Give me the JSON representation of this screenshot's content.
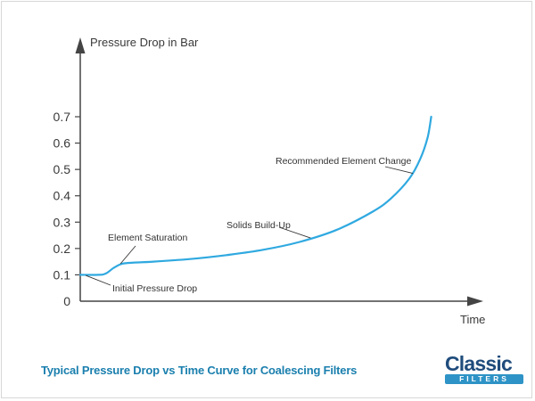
{
  "chart_data": {
    "type": "line",
    "ylabel": "Pressure Drop in Bar",
    "xlabel": "Time",
    "ylim": [
      0,
      0.7
    ],
    "yticks": [
      {
        "value": 0,
        "label": "0"
      },
      {
        "value": 0.1,
        "label": "0.1"
      },
      {
        "value": 0.2,
        "label": "0.2"
      },
      {
        "value": 0.3,
        "label": "0.3"
      },
      {
        "value": 0.4,
        "label": "0.4"
      },
      {
        "value": 0.5,
        "label": "0.5"
      },
      {
        "value": 0.6,
        "label": "0.6"
      },
      {
        "value": 0.7,
        "label": "0.7"
      }
    ],
    "series": [
      {
        "color": "#2fa9e0",
        "points": [
          [
            0.0,
            0.1
          ],
          [
            0.05,
            0.1
          ],
          [
            0.07,
            0.105
          ],
          [
            0.09,
            0.125
          ],
          [
            0.11,
            0.14
          ],
          [
            0.13,
            0.145
          ],
          [
            0.2,
            0.15
          ],
          [
            0.3,
            0.16
          ],
          [
            0.4,
            0.175
          ],
          [
            0.5,
            0.195
          ],
          [
            0.6,
            0.225
          ],
          [
            0.7,
            0.27
          ],
          [
            0.8,
            0.34
          ],
          [
            0.85,
            0.39
          ],
          [
            0.9,
            0.465
          ],
          [
            0.93,
            0.54
          ],
          [
            0.95,
            0.62
          ],
          [
            0.96,
            0.7
          ]
        ]
      }
    ],
    "annotations": [
      {
        "text": "Initial Pressure Drop",
        "target": [
          0.015,
          0.098
        ]
      },
      {
        "text": "Element Saturation",
        "target": [
          0.11,
          0.142
        ]
      },
      {
        "text": "Solids Build-Up",
        "target": [
          0.63,
          0.24
        ]
      },
      {
        "text": "Recommended Element Change",
        "target": [
          0.91,
          0.485
        ]
      }
    ]
  },
  "caption": "Typical Pressure Drop vs Time Curve for Coalescing Filters",
  "logo": {
    "word": "Classic",
    "tag": "FILTERS"
  }
}
